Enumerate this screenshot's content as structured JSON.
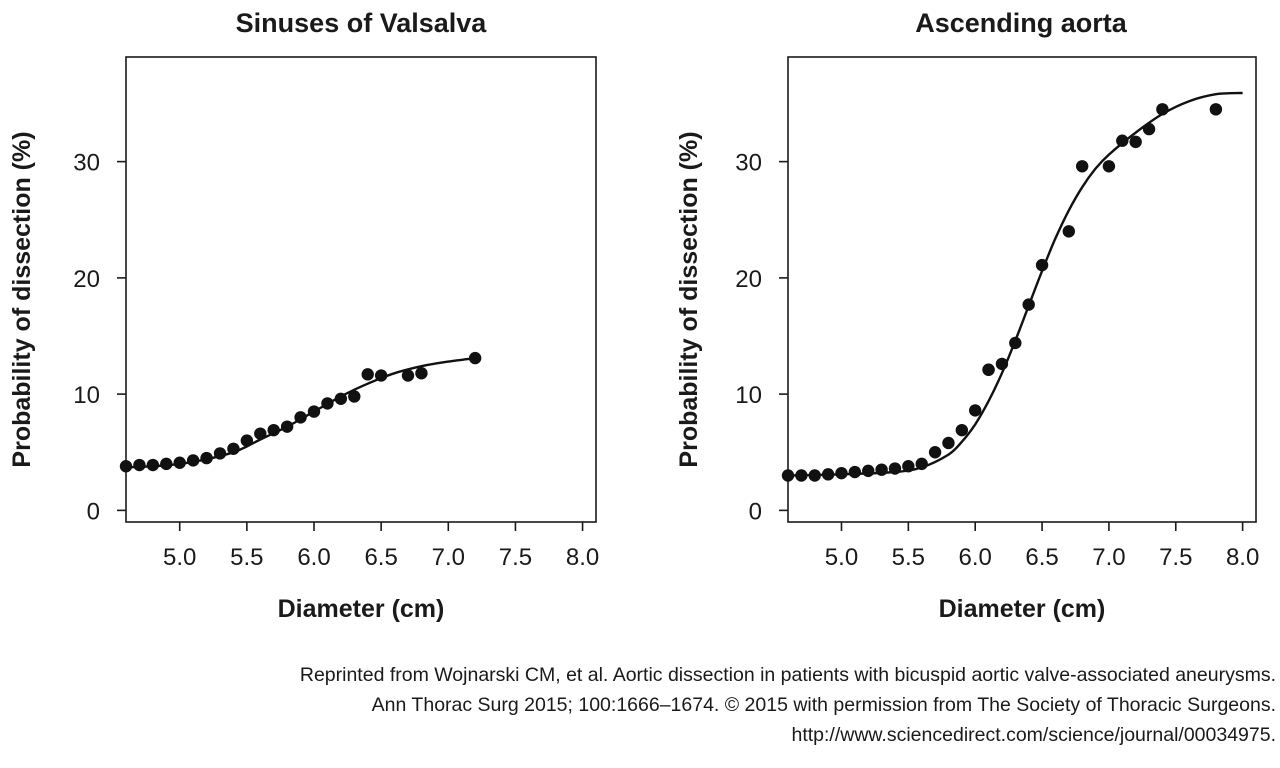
{
  "chart_data": [
    {
      "type": "scatter",
      "title": "Sinuses of Valsalva",
      "xlabel": "Diameter (cm)",
      "ylabel": "Probability of dissection (%)",
      "xlim": [
        4.6,
        8.1
      ],
      "ylim": [
        -1,
        39
      ],
      "xticks": [
        5.0,
        5.5,
        6.0,
        6.5,
        7.0,
        7.5,
        8.0
      ],
      "xtick_labels": [
        "5.0",
        "5.5",
        "6.0",
        "6.5",
        "7.0",
        "7.5",
        "8.0"
      ],
      "yticks": [
        0,
        10,
        20,
        30
      ],
      "ytick_labels": [
        "0",
        "10",
        "20",
        "30"
      ],
      "grid": false,
      "series": [
        {
          "kind": "points",
          "x": [
            4.6,
            4.7,
            4.8,
            4.9,
            5.0,
            5.1,
            5.2,
            5.3,
            5.4,
            5.5,
            5.6,
            5.7,
            5.8,
            5.9,
            6.0,
            6.1,
            6.2,
            6.3,
            6.4,
            6.5,
            6.7,
            6.8,
            7.2
          ],
          "y": [
            3.8,
            3.9,
            3.9,
            4.0,
            4.1,
            4.3,
            4.5,
            4.9,
            5.3,
            6.0,
            6.6,
            6.9,
            7.2,
            8.0,
            8.5,
            9.2,
            9.6,
            9.8,
            11.7,
            11.6,
            11.6,
            11.8,
            13.1
          ]
        },
        {
          "kind": "curve",
          "x": [
            4.6,
            4.8,
            5.0,
            5.2,
            5.4,
            5.5,
            5.6,
            5.8,
            6.0,
            6.2,
            6.4,
            6.6,
            6.8,
            7.0,
            7.2
          ],
          "y": [
            3.7,
            3.8,
            4.0,
            4.4,
            5.0,
            5.5,
            6.1,
            7.2,
            8.5,
            9.8,
            10.9,
            11.8,
            12.4,
            12.8,
            13.1
          ]
        }
      ]
    },
    {
      "type": "scatter",
      "title": "Ascending aorta",
      "xlabel": "Diameter (cm)",
      "ylabel": "Probability of dissection (%)",
      "xlim": [
        4.6,
        8.1
      ],
      "ylim": [
        -1,
        39
      ],
      "xticks": [
        5.0,
        5.5,
        6.0,
        6.5,
        7.0,
        7.5,
        8.0
      ],
      "xtick_labels": [
        "5.0",
        "5.5",
        "6.0",
        "6.5",
        "7.0",
        "7.5",
        "8.0"
      ],
      "yticks": [
        0,
        10,
        20,
        30
      ],
      "ytick_labels": [
        "0",
        "10",
        "20",
        "30"
      ],
      "grid": false,
      "series": [
        {
          "kind": "points",
          "x": [
            4.6,
            4.7,
            4.8,
            4.9,
            5.0,
            5.1,
            5.2,
            5.3,
            5.4,
            5.5,
            5.6,
            5.7,
            5.8,
            5.9,
            6.0,
            6.1,
            6.1,
            6.2,
            6.3,
            6.4,
            6.5,
            6.7,
            6.8,
            7.0,
            7.1,
            7.2,
            7.3,
            7.4,
            7.8
          ],
          "y": [
            3.0,
            3.0,
            3.0,
            3.1,
            3.2,
            3.3,
            3.4,
            3.5,
            3.6,
            3.8,
            4.0,
            5.0,
            5.8,
            6.9,
            8.6,
            12.1,
            12.1,
            12.6,
            14.4,
            17.7,
            21.1,
            24.0,
            29.6,
            29.6,
            31.8,
            31.7,
            32.8,
            34.5,
            34.5
          ]
        },
        {
          "kind": "curve",
          "x": [
            4.6,
            5.0,
            5.4,
            5.6,
            5.8,
            5.9,
            6.0,
            6.1,
            6.2,
            6.3,
            6.4,
            6.5,
            6.6,
            6.7,
            6.8,
            6.9,
            7.0,
            7.2,
            7.4,
            7.6,
            7.8,
            8.0
          ],
          "y": [
            3.0,
            3.1,
            3.3,
            3.7,
            4.8,
            5.9,
            7.4,
            9.4,
            11.8,
            14.6,
            17.6,
            20.6,
            23.4,
            25.8,
            27.8,
            29.4,
            30.6,
            32.5,
            34.1,
            35.2,
            35.8,
            35.9
          ]
        }
      ]
    }
  ],
  "credit": {
    "line1": "Reprinted from Wojnarski CM, et al. Aortic dissection in patients with bicuspid aortic valve-associated aneurysms.",
    "line2": "Ann Thorac Surg 2015; 100:1666–1674. © 2015 with permission from The Society of Thoracic Surgeons.",
    "line3": "http://www.sciencedirect.com/science/journal/00034975."
  }
}
